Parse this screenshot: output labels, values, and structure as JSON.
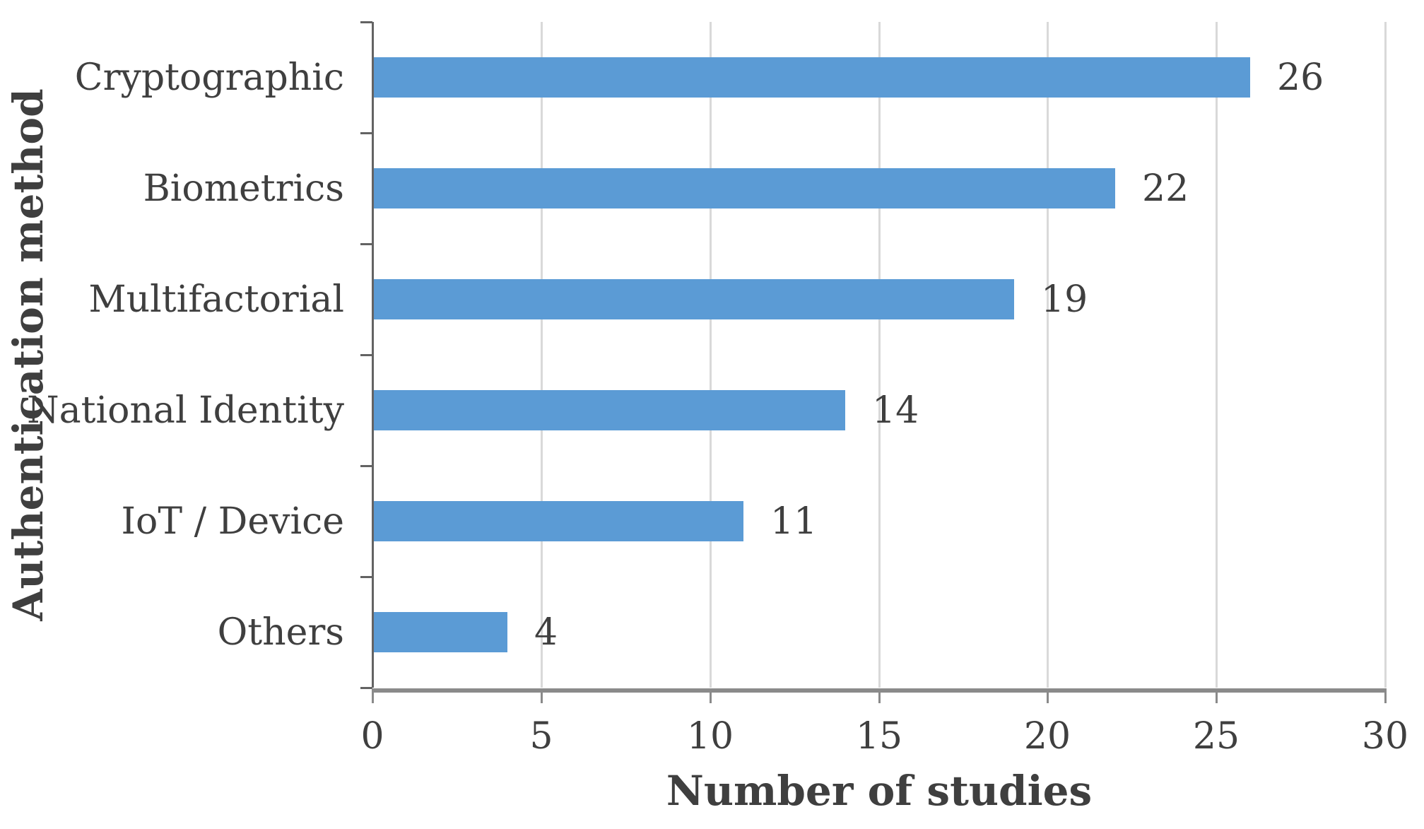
{
  "figure": {
    "background": "#ffffff"
  },
  "chart_data": {
    "type": "bar",
    "orientation": "horizontal",
    "title": "",
    "categories": [
      "Cryptographic",
      "Biometrics",
      "Multifactorial",
      "National Identity",
      "IoT / Device",
      "Others"
    ],
    "values": [
      26,
      22,
      19,
      14,
      11,
      4
    ],
    "data_labels": [
      "26",
      "22",
      "19",
      "14",
      "11",
      "4"
    ],
    "xlabel": "Number of studies",
    "ylabel": "Authentication method",
    "xlim": [
      0,
      30
    ],
    "xticks": [
      0,
      5,
      10,
      15,
      20,
      25,
      30
    ],
    "grid": "vertical-major",
    "legend": "none",
    "bar_color": "#5B9BD5",
    "text_color": "#3f3f3f",
    "gridline_color": "#d9d9d9",
    "value_axis_color": "#8a8a8a",
    "category_axis_color": "#636363"
  }
}
